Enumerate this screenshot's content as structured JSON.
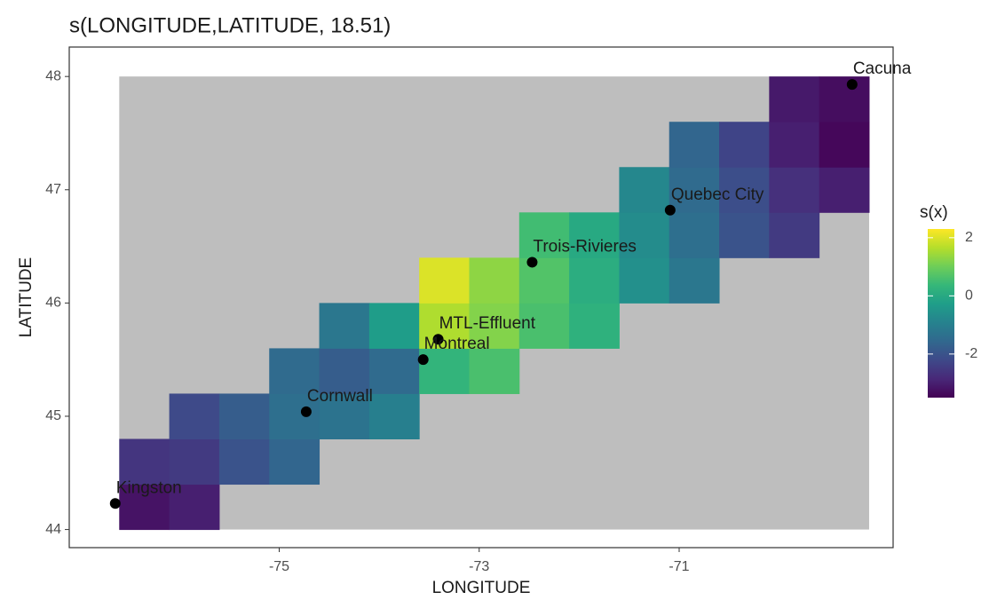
{
  "chart_data": {
    "type": "heatmap",
    "title": "s(LONGITUDE,LATITUDE, 18.51)",
    "x_label": "LONGITUDE",
    "y_label": "LATITUDE",
    "legend_title": "s(x)",
    "xlim": [
      -77.1,
      -68.86
    ],
    "ylim": [
      43.84,
      48.26
    ],
    "xticks": [
      -75,
      -73,
      -71
    ],
    "yticks": [
      44,
      45,
      46,
      47,
      48
    ],
    "zlim": [
      -3.5,
      2.3
    ],
    "zticks": [
      -2,
      0,
      2
    ],
    "colormap": "viridis",
    "background": "#bebebe",
    "point_color": "#000000",
    "surface": {
      "x": [
        -76.35,
        -75.85,
        -75.35,
        -74.85,
        -74.35,
        -73.85,
        -73.35,
        -72.85,
        -72.35,
        -71.85,
        -71.35,
        -70.85,
        -70.35,
        -69.85,
        -69.35
      ],
      "y": [
        44.2,
        44.6,
        45.0,
        45.4,
        45.8,
        46.2,
        46.6,
        47.0,
        47.4,
        47.8
      ],
      "z": [
        [
          -3.2,
          -3.0,
          null,
          null,
          null,
          null,
          null,
          null,
          null,
          null,
          null,
          null,
          null,
          null,
          null
        ],
        [
          -2.6,
          -2.5,
          -2.0,
          -1.6,
          null,
          null,
          null,
          null,
          null,
          null,
          null,
          null,
          null,
          null,
          null
        ],
        [
          null,
          -2.2,
          -1.8,
          -1.4,
          -1.3,
          -1.0,
          null,
          null,
          null,
          null,
          null,
          null,
          null,
          null,
          null
        ],
        [
          null,
          null,
          null,
          -1.5,
          -1.8,
          -1.5,
          0.3,
          0.6,
          null,
          null,
          null,
          null,
          null,
          null,
          null
        ],
        [
          null,
          null,
          null,
          null,
          -1.2,
          -0.3,
          1.6,
          1.2,
          0.6,
          0.2,
          null,
          null,
          null,
          null,
          null
        ],
        [
          null,
          null,
          null,
          null,
          null,
          null,
          2.0,
          1.3,
          0.7,
          0.1,
          -0.6,
          -1.2,
          null,
          null,
          null
        ],
        [
          null,
          null,
          null,
          null,
          null,
          null,
          null,
          null,
          0.5,
          0.0,
          -0.7,
          -1.4,
          -2.0,
          -2.5,
          null
        ],
        [
          null,
          null,
          null,
          null,
          null,
          null,
          null,
          null,
          null,
          null,
          -0.8,
          -1.5,
          -2.1,
          -2.7,
          -3.0
        ],
        [
          null,
          null,
          null,
          null,
          null,
          null,
          null,
          null,
          null,
          null,
          null,
          -1.6,
          -2.3,
          -3.0,
          -3.4
        ],
        [
          null,
          null,
          null,
          null,
          null,
          null,
          null,
          null,
          null,
          null,
          null,
          null,
          null,
          -3.1,
          -3.3
        ]
      ]
    },
    "points": {
      "names": [
        "Cacuna",
        "Quebec City",
        "Trois-Rivieres",
        "MTL-Effluent",
        "Montreal",
        "Cornwall",
        "Kingston"
      ],
      "x": [
        -69.27,
        -71.09,
        -72.47,
        -73.41,
        -73.56,
        -74.73,
        -76.64
      ],
      "y": [
        47.93,
        46.82,
        46.36,
        45.68,
        45.5,
        45.04,
        44.23
      ]
    }
  }
}
